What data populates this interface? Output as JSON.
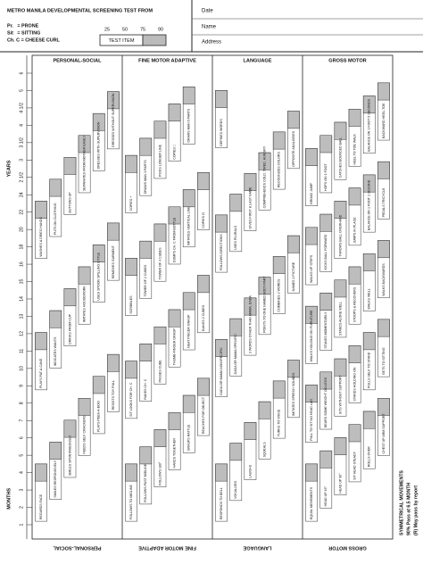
{
  "header": {
    "title": "METRO MANILA DEVELOPMENTAL SCREENING TEST FROM",
    "legend": [
      "Pr.   = PRONE",
      "Sit   = SITTING",
      "Ch. C = CHEESE CURL"
    ],
    "scale": [
      "25",
      "50",
      "75",
      "90"
    ],
    "key": "TEST ITEM",
    "fields": [
      "Date",
      "Name",
      "Address"
    ]
  },
  "age_axis": {
    "months_label": "MONTHS",
    "years_label": "YEARS",
    "ages": [
      "1",
      "2",
      "3",
      "4",
      "5",
      "6",
      "7",
      "8",
      "9",
      "10",
      "11",
      "12",
      "13",
      "14",
      "15",
      "16",
      "18",
      "20",
      "22",
      "24",
      "2 1/2",
      "3",
      "3 1/2",
      "4",
      "4 1/2",
      "5",
      "6"
    ]
  },
  "sectors": [
    {
      "title": "PERSONAL-SOCIAL",
      "items": [
        "REGARDS FACE",
        "SMILES RESPONSIVELY",
        "SMILES SPONTANEOUSLY",
        "FEEDS SELF CRACKERS",
        "PLAYS PEEK-A-BOO",
        "RESISTS TOY PULL",
        "PLAYS PAT-A-CAKE",
        "INDICATES WANTS",
        "DRINKS FROM CUP",
        "IMITATES HOUSEWORK",
        "USES SPOON SPILLING LITTLE",
        "REMOVES GARMENT",
        "WASHES & DRIES HANDS",
        "PUTS ON CLOTHING",
        "BUTTONS UP",
        "SEPARATES FROM MOTHER EASILY",
        "DRESSES WITH SUPERVISION",
        "DRESSES WITHOUT SUPERVISION"
      ]
    },
    {
      "title": "FINE MOTOR ADAPTIVE",
      "items": [
        "FOLLOWS TO MIDLINE",
        "FOLLOWS PAST MIDLINE",
        "FOLLOWS 180°",
        "HANDS TOGETHER",
        "GRASPS RATTLE",
        "REACHES FOR OBJECT",
        "SIT LOOKS FOR CH. C",
        "RAKES CH. C",
        "PASSES CUBE",
        "THUMB-FINGER GRASP",
        "NEAT PINCER GRASP",
        "BANGS 2 CUBES",
        "SCRIBBLES",
        "TOWER OF 2 CUBES",
        "TOWER OF 4 CUBES",
        "DUMPS CH. C FROM BOTTLE",
        "IMITATES VERTICAL LINE",
        "COPIES O",
        "COPIES +",
        "DRAWS MAN 3 PARTS",
        "PICKS LONGER LINE",
        "COPIES □",
        "DRAWS MAN 6 PARTS"
      ]
    },
    {
      "title": "LANGUAGE",
      "items": [
        "RESPONDS TO BELL",
        "VOCALIZES",
        "LAUGHS",
        "SQUEALS",
        "TURNS TO VOICE",
        "IMITATES SPEECH SOUNDS",
        "DADA OR MAMA NONSPECIFIC",
        "DADA OR MAMA SPECIFIC",
        "3 WORDS OTHER THAN MAMA, DADA",
        "POINTS TO ONE NAMED BODY PART",
        "COMBINES 2 WORDS",
        "NAMES 1 PICTURE",
        "FOLLOWS DIRECTIONS",
        "USES PLURALS",
        "GIVES FIRST & LAST NAME",
        "COMPREHENDS COLD, TIRED, HUNGRY",
        "RECOGNIZES COLORS",
        "OPPOSITE ANALOGIES",
        "DEFINES WORDS"
      ]
    },
    {
      "title": "GROSS MOTOR",
      "items": [
        "EQUAL MOVEMENTS",
        "HEAD UP 45°",
        "HEAD UP 90°",
        "SIT HEAD STEADY",
        "ROLLS OVER",
        "CHEST UP ARM SUPPORT",
        "PULL TO SIT NO HEAD LAG",
        "BEARS SOME WEIGHT ON LEGS",
        "SITS WITHOUT SUPPORT",
        "STANDS HOLDING ON",
        "PULLS SELF TO STAND",
        "GETS TO SITTING",
        "WALKS HOLDING ON FURNITURE",
        "STANDS MOMENTARILY",
        "STANDS ALONE WELL",
        "STOOPS & RECOVERS",
        "WALKS WELL",
        "WALKS BACKWARDS",
        "WALKS UP STEPS",
        "KICKS BALL FORWARD",
        "THROWS BALL OVERHAND",
        "JUMPS IN PLACE",
        "BALANCE ON 1 FOOT 1 SECOND",
        "PEDALS TRICYCLE",
        "BROAD JUMP",
        "HOPS ON 1 FOOT",
        "CATCHES BOUNCED BALL",
        "HEEL TO TOE WALK",
        "BALANCE ON 1 FOOT 5 SECONDS",
        "BACKWARD HEEL-TOE"
      ]
    }
  ],
  "footnote": [
    "SYMMETRICAL MOVEMENTS",
    "90% Pass at 6.5 MONTH",
    "(R) May pass by report"
  ]
}
